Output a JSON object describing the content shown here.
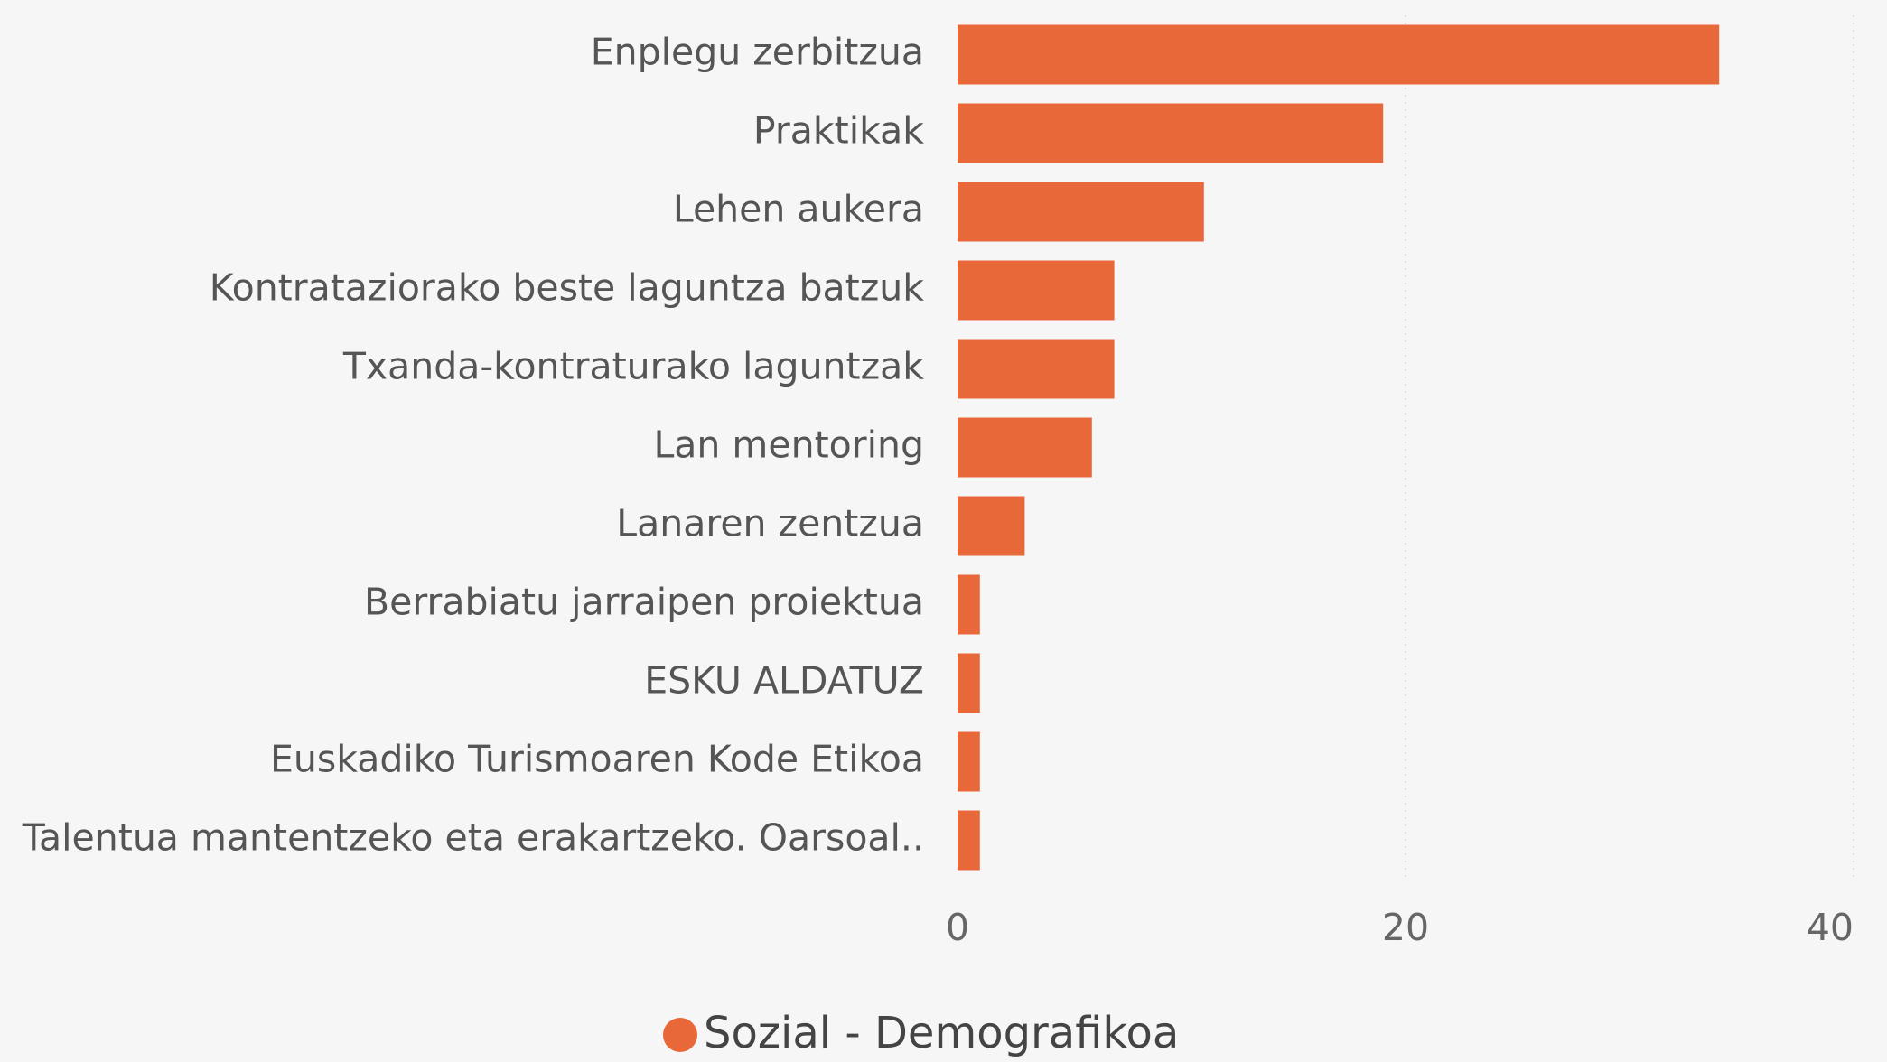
{
  "chart_data": {
    "type": "bar",
    "orientation": "horizontal",
    "categories": [
      "Enplegu zerbitzua",
      "Praktikak",
      "Lehen aukera",
      "Kontrataziorako beste laguntza batzuk",
      "Txanda-kontraturako laguntzak",
      "Lan mentoring",
      "Lanaren zentzua",
      "Berrabiatu jarraipen proiektua",
      "ESKU ALDATUZ",
      "Euskadiko Turismoaren Kode Etikoa",
      "Talentua mantentzeko eta erakartzeko. Oarsoal.."
    ],
    "series": [
      {
        "name": "Sozial - Demografikoa",
        "color": "#e8683a",
        "values": [
          34,
          19,
          11,
          7,
          7,
          6,
          3,
          1,
          1,
          1,
          1
        ]
      }
    ],
    "xlim": [
      0,
      40
    ],
    "xticks": [
      0,
      20,
      40
    ],
    "grid": true,
    "legend": "bottom"
  }
}
